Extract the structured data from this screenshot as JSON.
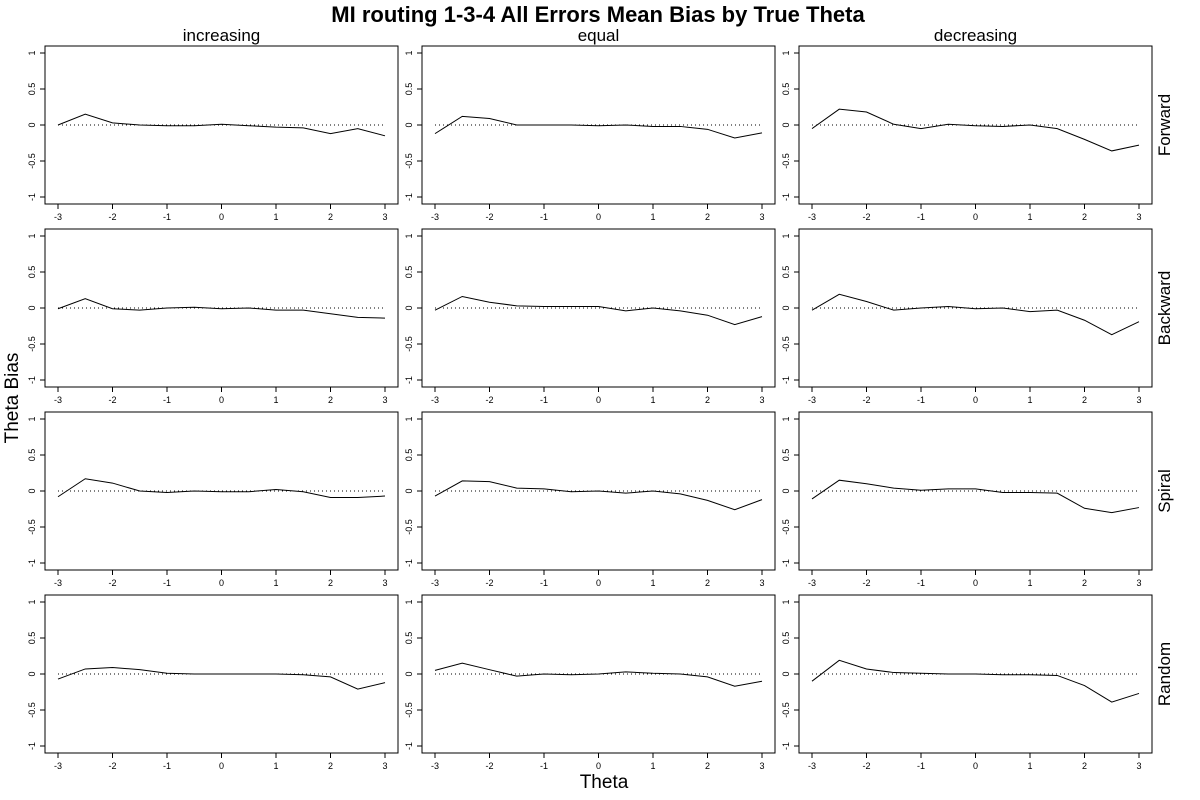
{
  "chart_data": {
    "type": "line",
    "title": "MI routing 1-3-4 All Errors Mean Bias by True Theta",
    "xlabel": "Theta",
    "ylabel": "Theta Bias",
    "columns": [
      "increasing",
      "equal",
      "decreasing"
    ],
    "rows": [
      "Forward",
      "Backward",
      "Spiral",
      "Random"
    ],
    "x": [
      -3,
      -2.5,
      -2,
      -1.5,
      -1,
      -0.5,
      0,
      0.5,
      1,
      1.5,
      2,
      2.5,
      3
    ],
    "xticks": [
      -3,
      -2,
      -1,
      0,
      1,
      2,
      3
    ],
    "yticks": [
      -1,
      -0.5,
      0,
      0.5,
      1
    ],
    "xlim": [
      -3,
      3
    ],
    "ylim": [
      -1,
      1
    ],
    "reference_line": 0,
    "panels": [
      {
        "row": "Forward",
        "column": "increasing",
        "values": [
          0.0,
          0.15,
          0.03,
          0.0,
          -0.01,
          -0.01,
          0.01,
          -0.01,
          -0.03,
          -0.04,
          -0.12,
          -0.05,
          -0.15
        ]
      },
      {
        "row": "Forward",
        "column": "equal",
        "values": [
          -0.12,
          0.12,
          0.09,
          0.0,
          0.0,
          0.0,
          -0.01,
          0.0,
          -0.02,
          -0.02,
          -0.06,
          -0.18,
          -0.11
        ]
      },
      {
        "row": "Forward",
        "column": "decreasing",
        "values": [
          -0.05,
          0.22,
          0.18,
          0.01,
          -0.05,
          0.01,
          -0.01,
          -0.02,
          0.0,
          -0.05,
          -0.2,
          -0.36,
          -0.28
        ]
      },
      {
        "row": "Backward",
        "column": "increasing",
        "values": [
          -0.01,
          0.13,
          -0.01,
          -0.03,
          0.0,
          0.01,
          -0.01,
          0.0,
          -0.03,
          -0.03,
          -0.08,
          -0.13,
          -0.14
        ]
      },
      {
        "row": "Backward",
        "column": "equal",
        "values": [
          -0.03,
          0.16,
          0.08,
          0.03,
          0.02,
          0.02,
          0.02,
          -0.04,
          0.0,
          -0.04,
          -0.1,
          -0.23,
          -0.12
        ]
      },
      {
        "row": "Backward",
        "column": "decreasing",
        "values": [
          -0.03,
          0.19,
          0.09,
          -0.03,
          0.0,
          0.02,
          -0.01,
          0.0,
          -0.05,
          -0.03,
          -0.17,
          -0.37,
          -0.19
        ]
      },
      {
        "row": "Spiral",
        "column": "increasing",
        "values": [
          -0.08,
          0.17,
          0.11,
          0.0,
          -0.02,
          0.0,
          -0.01,
          -0.01,
          0.02,
          -0.01,
          -0.09,
          -0.09,
          -0.07
        ]
      },
      {
        "row": "Spiral",
        "column": "equal",
        "values": [
          -0.07,
          0.14,
          0.13,
          0.04,
          0.03,
          -0.01,
          0.0,
          -0.03,
          0.0,
          -0.04,
          -0.13,
          -0.26,
          -0.12
        ]
      },
      {
        "row": "Spiral",
        "column": "decreasing",
        "values": [
          -0.11,
          0.15,
          0.1,
          0.04,
          0.01,
          0.03,
          0.03,
          -0.02,
          -0.02,
          -0.03,
          -0.24,
          -0.3,
          -0.23
        ]
      },
      {
        "row": "Random",
        "column": "increasing",
        "values": [
          -0.07,
          0.07,
          0.09,
          0.06,
          0.01,
          0.0,
          0.0,
          0.0,
          0.0,
          -0.01,
          -0.04,
          -0.21,
          -0.12
        ]
      },
      {
        "row": "Random",
        "column": "equal",
        "values": [
          0.05,
          0.15,
          0.06,
          -0.03,
          0.0,
          -0.01,
          0.0,
          0.03,
          0.01,
          0.0,
          -0.04,
          -0.17,
          -0.1
        ]
      },
      {
        "row": "Random",
        "column": "decreasing",
        "values": [
          -0.1,
          0.19,
          0.07,
          0.02,
          0.01,
          0.0,
          0.0,
          -0.01,
          -0.01,
          -0.02,
          -0.16,
          -0.39,
          -0.27
        ]
      }
    ]
  }
}
